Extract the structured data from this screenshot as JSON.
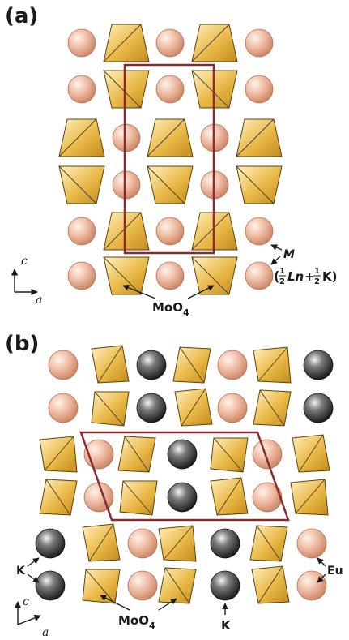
{
  "colors": {
    "ln_sphere": "#e6a88e",
    "k_sphere": "#2b2b2b",
    "moo4_fill": "#e6b43b",
    "moo4_edge": "#5a4410",
    "unit_cell": "#8b2a2e"
  },
  "panel_a": {
    "label": "(a)",
    "site_label": "M",
    "site_formula": {
      "open": "(",
      "num1": "1",
      "den1": "2",
      "ln": "Ln",
      "plus": "+",
      "num2": "1",
      "den2": "2",
      "k": "K)"
    },
    "moo4_label": "MoO",
    "moo4_sub": "4",
    "axis_c": "c",
    "axis_a": "a"
  },
  "panel_b": {
    "label": "(b)",
    "k_label": "K",
    "eu_label": "Eu",
    "moo4_label": "MoO",
    "moo4_sub": "4",
    "k_bottom_label": "K",
    "axis_c": "c",
    "axis_a": "a"
  }
}
